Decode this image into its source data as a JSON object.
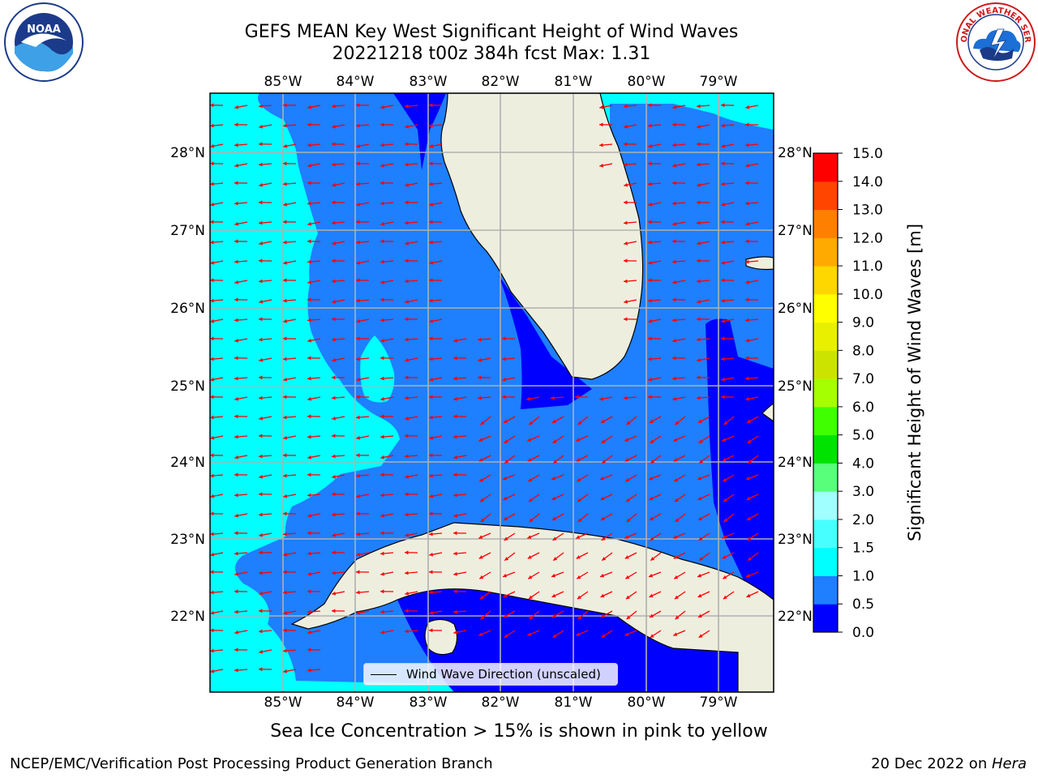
{
  "title_line1": "GEFS MEAN Key West Significant Height of Wind Waves",
  "title_line2": "20221218 t00z 384h fcst   Max: 1.31",
  "legend_label": "Wind Wave Direction (unscaled)",
  "colorbar_label": "Significant Height of Wind Waves [m]",
  "colorbar_ticks": [
    "0.0",
    "0.5",
    "1.0",
    "1.5",
    "2.0",
    "3.0",
    "4.0",
    "5.0",
    "6.0",
    "7.0",
    "8.0",
    "9.0",
    "10.0",
    "11.0",
    "12.0",
    "13.0",
    "14.0",
    "15.0"
  ],
  "colorbar_colors": [
    "#0000ff",
    "#1e7fff",
    "#00ffff",
    "#48ffff",
    "#a0ffff",
    "#58ff7a",
    "#00e300",
    "#40ff00",
    "#a6ff00",
    "#cce300",
    "#e8f000",
    "#ffff00",
    "#ffd700",
    "#ffaa00",
    "#ff8000",
    "#ff4500",
    "#ff0000"
  ],
  "lon_ticks": [
    "85°W",
    "84°W",
    "83°W",
    "82°W",
    "81°W",
    "80°W",
    "79°W"
  ],
  "lat_ticks": [
    "28°N",
    "27°N",
    "26°N",
    "25°N",
    "24°N",
    "23°N",
    "22°N"
  ],
  "note": "Sea Ice Concentration > 15% is shown in pink to yellow",
  "footer_left": "NCEP/EMC/Verification Post Processing Product Generation Branch",
  "footer_right_date": "20 Dec 2022 on ",
  "footer_right_machine": "Hera",
  "logos": {
    "noaa_text": "NOAA",
    "nws_text": "NATIONAL WEATHER SERVICE"
  },
  "colors": {
    "deep": "#0000ff",
    "mid": "#1e7fff",
    "shallow": "#00ffff",
    "land": "#eeeedf",
    "arrow": "#ff0000",
    "grid": "#b0b0b0"
  }
}
